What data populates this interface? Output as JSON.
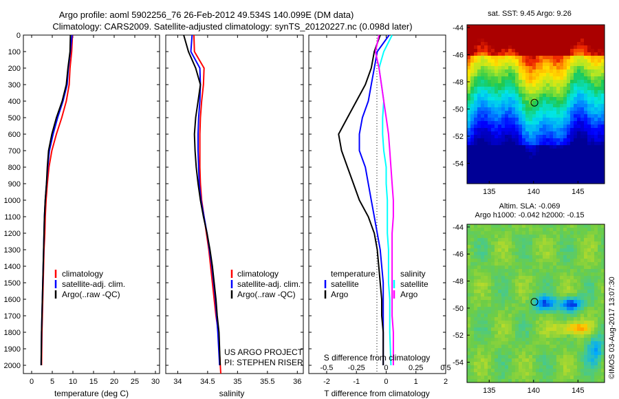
{
  "title_line1": "Argo profile: aoml 5902256_76 26-Feb-2012 49.534S 140.099E (DM data)",
  "title_line2": "Climatology: CARS2009. Satellite-adjusted climatology: synTS_20120227.nc (0.098d later)",
  "sst_title": "sat. SST: 9.45 Argo: 9.26",
  "sla_title1": "Altim. SLA: -0.069",
  "sla_title2": "Argo h1000: -0.042 h2000: -0.15",
  "stamp": "©IMOS 03-Aug-2017 13:07:30",
  "project_line1": "US ARGO PROJECT",
  "project_line2": "PI: STEPHEN RISER",
  "colors": {
    "climatology": "#ff0000",
    "satellite": "#0000ff",
    "argo": "#000000",
    "sat_S": "#00ffff",
    "argo_S": "#ff00ff"
  },
  "chart_data": [
    {
      "type": "line",
      "xlabel": "temperature (deg C)",
      "ylabel": "",
      "xlim": [
        -2,
        31
      ],
      "ylim": [
        2050,
        0
      ],
      "xticks": [
        0,
        5,
        10,
        15,
        20,
        25,
        30
      ],
      "yticks": [
        0,
        100,
        200,
        300,
        400,
        500,
        600,
        700,
        800,
        900,
        1000,
        1100,
        1200,
        1300,
        1400,
        1500,
        1600,
        1700,
        1800,
        1900,
        2000
      ],
      "legend": [
        "climatology",
        "satellite-adj. clim.",
        "Argo(..raw -QC)"
      ],
      "series": [
        {
          "name": "climatology",
          "x": [
            9.9,
            9.7,
            9.3,
            9.1,
            8.4,
            7.3,
            6.0,
            4.9,
            4.2,
            3.8,
            3.5,
            3.3,
            3.2,
            3.0,
            2.9,
            2.8,
            2.7,
            2.6,
            2.5,
            2.4
          ],
          "y": [
            0,
            100,
            200,
            300,
            400,
            500,
            600,
            700,
            800,
            900,
            1000,
            1100,
            1200,
            1300,
            1400,
            1500,
            1600,
            1700,
            1800,
            2000
          ]
        },
        {
          "name": "satellite-adj. clim.",
          "x": [
            9.8,
            9.4,
            8.9,
            8.6,
            7.6,
            6.3,
            5.2,
            4.3,
            3.9,
            3.6,
            3.3,
            3.1,
            3.0,
            2.9,
            2.8,
            2.7,
            2.6,
            2.5,
            2.4,
            2.3
          ],
          "y": [
            0,
            100,
            200,
            300,
            400,
            500,
            600,
            700,
            800,
            900,
            1000,
            1100,
            1200,
            1300,
            1400,
            1500,
            1600,
            1700,
            1800,
            2000
          ]
        },
        {
          "name": "Argo(..raw -QC)",
          "x": [
            9.4,
            9.3,
            8.8,
            8.4,
            7.4,
            6.0,
            4.9,
            4.1,
            3.8,
            3.6,
            3.3,
            3.1,
            3.0,
            2.9,
            2.8,
            2.7,
            2.6,
            2.5,
            2.4,
            2.3
          ],
          "y": [
            0,
            100,
            200,
            300,
            400,
            500,
            600,
            700,
            800,
            900,
            1000,
            1100,
            1200,
            1300,
            1400,
            1500,
            1600,
            1700,
            1800,
            2000
          ]
        }
      ]
    },
    {
      "type": "line",
      "xlabel": "salinity",
      "xlim": [
        33.8,
        36.1
      ],
      "ylim": [
        2050,
        0
      ],
      "xticks": [
        34,
        34.5,
        35,
        35.5,
        36
      ],
      "legend": [
        "climatology",
        "satellite-adj. clim.",
        "Argo(..raw -QC)"
      ],
      "series": [
        {
          "name": "climatology",
          "x": [
            34.27,
            34.28,
            34.44,
            34.43,
            34.4,
            34.38,
            34.37,
            34.37,
            34.37,
            34.38,
            34.4,
            34.44,
            34.48,
            34.52,
            34.55,
            34.58,
            34.61,
            34.64,
            34.68,
            34.72
          ],
          "y": [
            0,
            100,
            200,
            300,
            400,
            500,
            600,
            700,
            800,
            900,
            1000,
            1100,
            1200,
            1300,
            1400,
            1500,
            1600,
            1700,
            1800,
            2050
          ]
        },
        {
          "name": "satellite-adj. clim.",
          "x": [
            34.24,
            34.22,
            34.37,
            34.38,
            34.37,
            34.35,
            34.34,
            34.34,
            34.35,
            34.36,
            34.39,
            34.44,
            34.49,
            34.53,
            34.57,
            34.6,
            34.63,
            34.65,
            34.67,
            34.7
          ],
          "y": [
            0,
            100,
            200,
            300,
            400,
            500,
            600,
            700,
            800,
            900,
            1000,
            1100,
            1200,
            1300,
            1400,
            1500,
            1600,
            1700,
            1800,
            2000
          ]
        },
        {
          "name": "Argo(..raw -QC)",
          "x": [
            34.1,
            34.18,
            34.3,
            34.38,
            34.34,
            34.3,
            34.28,
            34.29,
            34.31,
            34.34,
            34.38,
            34.43,
            34.49,
            34.54,
            34.58,
            34.61,
            34.64,
            34.66,
            34.69,
            34.71
          ],
          "y": [
            0,
            100,
            200,
            300,
            400,
            500,
            600,
            700,
            800,
            900,
            1000,
            1100,
            1200,
            1300,
            1400,
            1500,
            1600,
            1700,
            1800,
            2000
          ]
        }
      ]
    },
    {
      "type": "line",
      "xlabel": "T difference from climatology",
      "x2label": "S difference from climatology",
      "xlim": [
        -2.6,
        2.0
      ],
      "ylim": [
        2050,
        0
      ],
      "xticks": [
        -2,
        -1,
        0,
        1,
        2
      ],
      "x2lim": [
        -0.65,
        0.5
      ],
      "x2ticks": [
        -0.5,
        -0.25,
        0,
        0.25,
        0.5
      ],
      "legend": [
        "temperature",
        "satellite",
        "Argo",
        "salinity",
        "satellite",
        "Argo"
      ],
      "series": [
        {
          "name": "satellite",
          "x": [
            0.1,
            -0.3,
            -0.4,
            -0.5,
            -0.6,
            -0.8,
            -0.9,
            -0.9,
            -0.7,
            -0.6,
            -0.5,
            -0.4,
            -0.3,
            -0.2,
            -0.15,
            -0.1,
            -0.1,
            -0.1,
            -0.1,
            -0.1
          ],
          "y": [
            0,
            100,
            200,
            300,
            400,
            500,
            600,
            700,
            800,
            900,
            1000,
            1100,
            1200,
            1300,
            1400,
            1500,
            1600,
            1700,
            1800,
            2000
          ]
        },
        {
          "name": "Argo",
          "x": [
            -0.2,
            -0.4,
            -0.5,
            -0.7,
            -1.0,
            -1.3,
            -1.6,
            -1.5,
            -1.3,
            -1.1,
            -0.9,
            -0.6,
            -0.4,
            -0.3,
            -0.25,
            -0.2,
            -0.15,
            -0.15,
            -0.1,
            -0.1
          ],
          "y": [
            0,
            100,
            200,
            300,
            400,
            500,
            600,
            700,
            800,
            900,
            1000,
            1100,
            1200,
            1300,
            1400,
            1500,
            1600,
            1700,
            1800,
            2000
          ]
        },
        {
          "name": "satellite",
          "x": [
            0.05,
            -0.02,
            -0.06,
            -0.04,
            -0.02,
            -0.03,
            -0.03,
            -0.02,
            0.0,
            0.0,
            0.01,
            0.01,
            0.01,
            0.02,
            0.02,
            0.02,
            0.03,
            0.03,
            0.03,
            0.04
          ],
          "y": [
            0,
            100,
            200,
            300,
            400,
            500,
            600,
            700,
            800,
            900,
            1000,
            1100,
            1200,
            1300,
            1400,
            1500,
            1600,
            1700,
            1800,
            2000
          ]
        },
        {
          "name": "Argo",
          "x": [
            -0.06,
            -0.09,
            -0.06,
            -0.04,
            -0.02,
            0.0,
            0.02,
            0.03,
            0.04,
            0.05,
            0.06,
            0.06,
            0.05,
            0.05,
            0.05,
            0.05,
            0.05,
            0.05,
            0.06,
            0.06
          ],
          "y": [
            0,
            100,
            200,
            300,
            400,
            500,
            600,
            700,
            800,
            900,
            1000,
            1100,
            1200,
            1300,
            1400,
            1500,
            1600,
            1700,
            1800,
            2000
          ]
        }
      ]
    },
    {
      "type": "heatmap",
      "title": "sat. SST: 9.45 Argo: 9.26",
      "xlim": [
        132.5,
        148.0
      ],
      "ylim": [
        -55.5,
        -43.8
      ],
      "xticks": [
        135,
        140,
        145
      ],
      "yticks": [
        -44,
        -46,
        -48,
        -50,
        -52,
        -54
      ],
      "marker": {
        "lon": 140.099,
        "lat": -49.534
      }
    },
    {
      "type": "heatmap",
      "title": "Altim. SLA: -0.069",
      "xlim": [
        132.5,
        148.0
      ],
      "ylim": [
        -55.5,
        -43.8
      ],
      "xticks": [
        135,
        140,
        145
      ],
      "yticks": [
        -44,
        -46,
        -48,
        -50,
        -52,
        -54
      ],
      "marker": {
        "lon": 140.099,
        "lat": -49.534
      }
    }
  ]
}
